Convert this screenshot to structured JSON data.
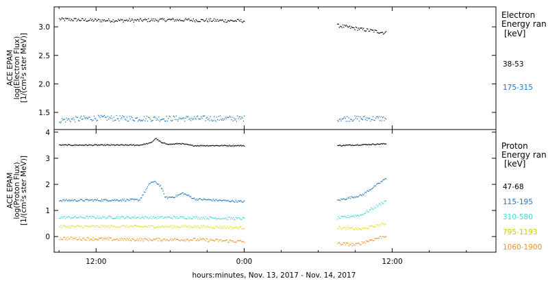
{
  "x_axis": {
    "label": "hours:minutes, Nov. 13, 2017 - Nov. 14, 2017",
    "tick_labels": [
      "12:00",
      "0:00",
      "12:00"
    ]
  },
  "chart_data": [
    {
      "type": "scatter",
      "panel": "electron",
      "ylabel_lines": [
        "ACE EPAM",
        "log(Electron Flux)",
        "[1/(cm²s ster MeV)]"
      ],
      "x_unit": "hours from 2017-11-13 00:00",
      "xlim": [
        8.6,
        44.4
      ],
      "ylim": [
        1.2,
        3.35
      ],
      "yticks": [
        "1.5",
        "2.0",
        "2.5",
        "3.0"
      ],
      "ytick_values": [
        1.5,
        2.0,
        2.5,
        3.0
      ],
      "legend_title_lines": [
        "Electron",
        "Energy ran",
        "[keV]"
      ],
      "data_gap_hours": [
        24.0,
        31.5
      ],
      "series": [
        {
          "name": "38-53",
          "color": "#000000",
          "jitter": 0.03,
          "points": [
            [
              9,
              3.14
            ],
            [
              12,
              3.12
            ],
            [
              15,
              3.12
            ],
            [
              18,
              3.13
            ],
            [
              21,
              3.12
            ],
            [
              24,
              3.11
            ],
            [
              31.5,
              3.03
            ],
            [
              33,
              2.98
            ],
            [
              35.5,
              2.9
            ]
          ]
        },
        {
          "name": "175-315",
          "color": "#1a74c8",
          "jitter": 0.05,
          "points": [
            [
              9,
              1.37
            ],
            [
              12,
              1.41
            ],
            [
              15,
              1.4
            ],
            [
              18,
              1.4
            ],
            [
              21,
              1.4
            ],
            [
              24,
              1.4
            ],
            [
              31.5,
              1.4
            ],
            [
              35.5,
              1.4
            ]
          ]
        }
      ]
    },
    {
      "type": "scatter",
      "panel": "proton",
      "ylabel_lines": [
        "ACE EPAM",
        "log(Proton Flux)",
        "[1/(cm²s ster MeV)]"
      ],
      "x_unit": "hours from 2017-11-13 00:00",
      "xlim": [
        8.6,
        44.4
      ],
      "ylim": [
        -0.6,
        4.1
      ],
      "yticks": [
        "0",
        "1",
        "2",
        "3",
        "4"
      ],
      "ytick_values": [
        0,
        1,
        2,
        3,
        4
      ],
      "legend_title_lines": [
        "Proton",
        "Energy ran",
        "[keV]"
      ],
      "data_gap_hours": [
        24.0,
        31.5
      ],
      "series": [
        {
          "name": "47-68",
          "color": "#000000",
          "jitter": 0.02,
          "points": [
            [
              9,
              3.52
            ],
            [
              15.5,
              3.52
            ],
            [
              16.4,
              3.6
            ],
            [
              16.8,
              3.78
            ],
            [
              17.3,
              3.6
            ],
            [
              18.0,
              3.55
            ],
            [
              18.8,
              3.58
            ],
            [
              19.8,
              3.5
            ],
            [
              24,
              3.5
            ],
            [
              31.5,
              3.5
            ],
            [
              35.5,
              3.57
            ]
          ]
        },
        {
          "name": "115-195",
          "color": "#1a74c8",
          "jitter": 0.04,
          "points": [
            [
              9,
              1.4
            ],
            [
              15.5,
              1.42
            ],
            [
              16.4,
              2.1
            ],
            [
              16.8,
              2.1
            ],
            [
              17.2,
              1.95
            ],
            [
              17.6,
              1.5
            ],
            [
              18.4,
              1.55
            ],
            [
              19.0,
              1.68
            ],
            [
              20.0,
              1.45
            ],
            [
              24,
              1.35
            ],
            [
              31.5,
              1.4
            ],
            [
              33.5,
              1.6
            ],
            [
              35.5,
              2.25
            ]
          ]
        },
        {
          "name": "310-580",
          "color": "#3ad8d8",
          "jitter": 0.05,
          "points": [
            [
              9,
              0.75
            ],
            [
              15,
              0.75
            ],
            [
              20,
              0.74
            ],
            [
              24,
              0.7
            ],
            [
              31.5,
              0.72
            ],
            [
              33.5,
              0.85
            ],
            [
              35.5,
              1.4
            ]
          ]
        },
        {
          "name": "795-1193",
          "color": "#e0e020",
          "jitter": 0.05,
          "points": [
            [
              9,
              0.4
            ],
            [
              15,
              0.4
            ],
            [
              20,
              0.4
            ],
            [
              24,
              0.35
            ],
            [
              31.5,
              0.35
            ],
            [
              33.5,
              0.3
            ],
            [
              35.5,
              0.52
            ]
          ]
        },
        {
          "name": "1060-1900",
          "color": "#f09020",
          "jitter": 0.06,
          "points": [
            [
              9,
              -0.05
            ],
            [
              15,
              -0.1
            ],
            [
              20,
              -0.1
            ],
            [
              24,
              -0.18
            ],
            [
              31.5,
              -0.25
            ],
            [
              33.0,
              -0.3
            ],
            [
              34.0,
              -0.15
            ],
            [
              35.5,
              0.05
            ]
          ]
        }
      ]
    }
  ]
}
